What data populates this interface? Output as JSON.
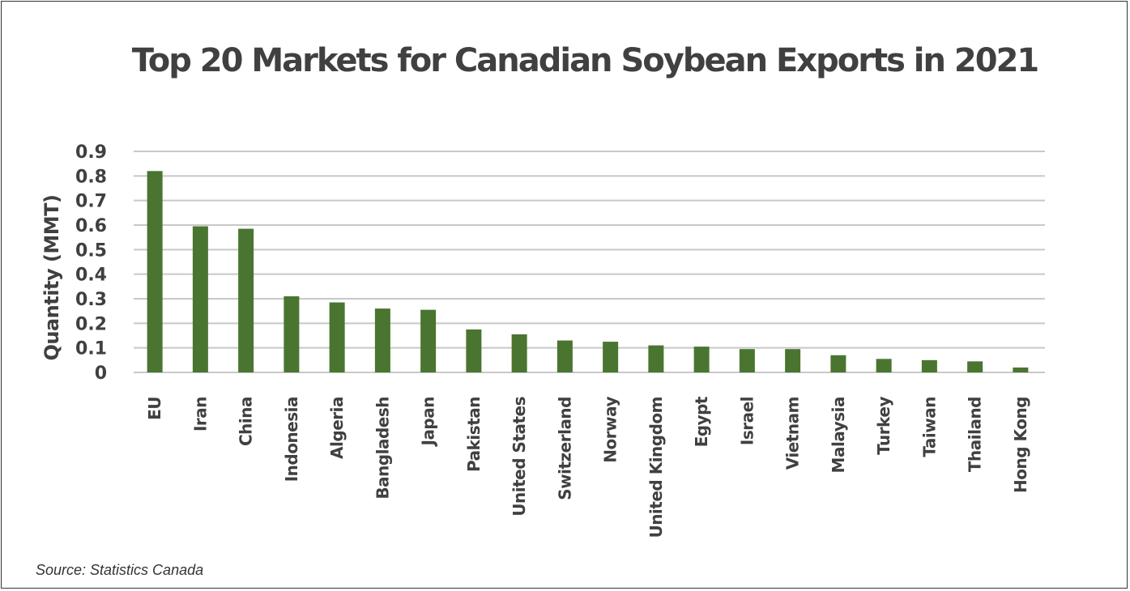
{
  "chart_data": {
    "type": "bar",
    "title": "Top 20 Markets for Canadian Soybean Exports in 2021",
    "xlabel": "",
    "ylabel": "Quantity (MMT)",
    "ylim": [
      0,
      0.9
    ],
    "yticks": [
      "0",
      "0.1",
      "0.2",
      "0.3",
      "0.4",
      "0.5",
      "0.6",
      "0.7",
      "0.8",
      "0.9"
    ],
    "grid": true,
    "categories": [
      "EU",
      "Iran",
      "China",
      "Indonesia",
      "Algeria",
      "Bangladesh",
      "Japan",
      "Pakistan",
      "United States",
      "Switzerland",
      "Norway",
      "United Kingdom",
      "Egypt",
      "Israel",
      "Vietnam",
      "Malaysia",
      "Turkey",
      "Taiwan",
      "Thailand",
      "Hong Kong"
    ],
    "values": [
      0.82,
      0.595,
      0.585,
      0.31,
      0.285,
      0.26,
      0.255,
      0.175,
      0.155,
      0.13,
      0.125,
      0.11,
      0.105,
      0.095,
      0.095,
      0.07,
      0.055,
      0.05,
      0.045,
      0.02
    ],
    "bar_color": "#4a7530",
    "grid_color": "#c8c8c8",
    "source": "Source: Statistics Canada"
  }
}
